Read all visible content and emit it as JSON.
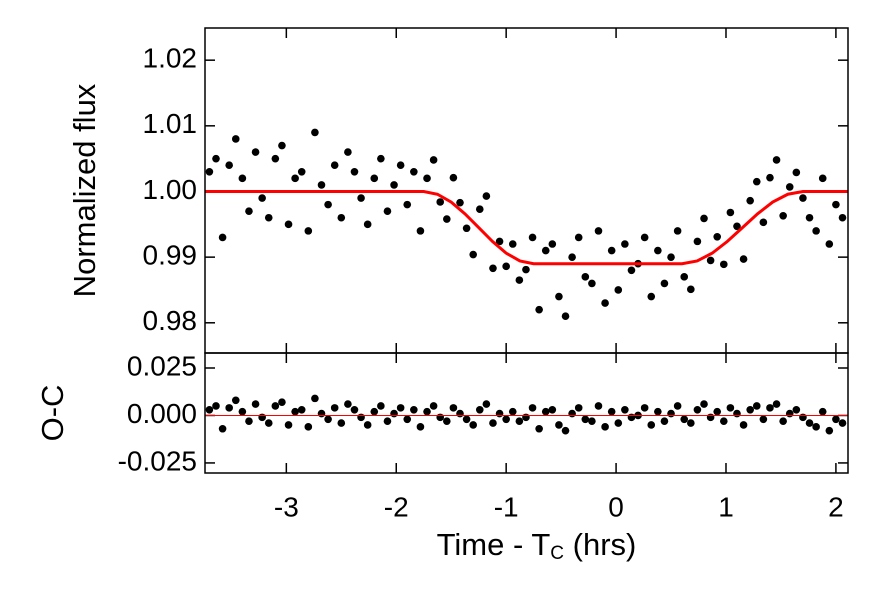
{
  "chart_data": [
    {
      "type": "scatter",
      "ylabel": "Normalized flux",
      "xlim": [
        -3.74,
        2.11
      ],
      "ylim": [
        0.9754,
        1.0249
      ],
      "xticks": [
        -3,
        -2,
        -1,
        0,
        1,
        2
      ],
      "show_xticklabels": false,
      "yticks": [
        0.98,
        0.99,
        {
          "value": 1,
          "label": "1.00"
        },
        1.01,
        1.02
      ],
      "series": [
        {
          "mode": "markers",
          "color": "#000000",
          "x": [
            -3.7,
            -3.64,
            -3.58,
            -3.52,
            -3.46,
            -3.4,
            -3.34,
            -3.28,
            -3.22,
            -3.16,
            -3.1,
            -3.04,
            -2.98,
            -2.92,
            -2.86,
            -2.8,
            -2.74,
            -2.68,
            -2.62,
            -2.56,
            -2.5,
            -2.44,
            -2.38,
            -2.32,
            -2.26,
            -2.2,
            -2.14,
            -2.08,
            -2.02,
            -1.96,
            -1.9,
            -1.84,
            -1.78,
            -1.72,
            -1.66,
            -1.6,
            -1.54,
            -1.48,
            -1.42,
            -1.36,
            -1.3,
            -1.24,
            -1.18,
            -1.12,
            -1.06,
            -1.0,
            -0.94,
            -0.88,
            -0.82,
            -0.76,
            -0.7,
            -0.64,
            -0.58,
            -0.52,
            -0.46,
            -0.4,
            -0.34,
            -0.28,
            -0.22,
            -0.16,
            -0.1,
            -0.04,
            0.02,
            0.08,
            0.14,
            0.2,
            0.26,
            0.32,
            0.38,
            0.44,
            0.5,
            0.56,
            0.62,
            0.68,
            0.74,
            0.8,
            0.86,
            0.92,
            0.98,
            1.04,
            1.1,
            1.16,
            1.22,
            1.28,
            1.34,
            1.4,
            1.46,
            1.52,
            1.58,
            1.64,
            1.7,
            1.76,
            1.82,
            1.88,
            1.94,
            2.0,
            2.06
          ],
          "values": [
            1.003,
            1.005,
            0.993,
            1.004,
            1.008,
            1.002,
            0.997,
            1.006,
            0.999,
            0.996,
            1.005,
            1.007,
            0.995,
            1.002,
            1.003,
            0.994,
            1.009,
            1.001,
            0.998,
            1.004,
            0.996,
            1.006,
            1.003,
            0.999,
            0.995,
            1.002,
            1.005,
            0.997,
            1.001,
            1.004,
            0.998,
            1.003,
            0.994,
            1.002,
            1.0048,
            0.9984,
            0.9958,
            1.0021,
            0.9983,
            0.9944,
            0.9904,
            0.9973,
            0.9993,
            0.9883,
            0.9924,
            0.9886,
            0.992,
            0.9865,
            0.9881,
            0.993,
            0.982,
            0.991,
            0.992,
            0.984,
            0.981,
            0.99,
            0.993,
            0.987,
            0.986,
            0.994,
            0.983,
            0.991,
            0.985,
            0.992,
            0.988,
            0.989,
            0.993,
            0.984,
            0.991,
            0.986,
            0.99,
            0.994,
            0.987,
            0.9851,
            0.9924,
            0.9959,
            0.9895,
            0.9931,
            0.9889,
            0.9968,
            0.9947,
            0.9897,
            0.9986,
            1.0015,
            0.9953,
            1.0021,
            1.0048,
            0.9963,
            1.0007,
            1.0029,
            0.999,
            0.996,
            0.994,
            1.002,
            0.992,
            0.998,
            0.996
          ]
        },
        {
          "mode": "lines",
          "color": "#ff0000",
          "x": [
            -3.74,
            -1.75,
            -1.625,
            -1.5,
            -1.375,
            -1.25,
            -1.125,
            -1.0,
            -0.875,
            -0.75,
            0.6,
            0.7375,
            0.875,
            1.0125,
            1.15,
            1.2875,
            1.425,
            1.5625,
            1.7,
            2.11
          ],
          "values": [
            1.0,
            1.0,
            0.99958,
            0.99839,
            0.9966,
            0.9945,
            0.9924,
            0.99061,
            0.98942,
            0.989,
            0.989,
            0.98942,
            0.99061,
            0.9924,
            0.9945,
            0.9966,
            0.99839,
            0.99958,
            1.0,
            1.0
          ]
        }
      ]
    },
    {
      "type": "scatter",
      "ylabel": "O-C",
      "xlabel": [
        "Time - T",
        "C",
        " (hrs)"
      ],
      "xlim": [
        -3.74,
        2.11
      ],
      "ylim": [
        -0.0303,
        0.0329
      ],
      "xticks": [
        -3,
        -2,
        -1,
        0,
        1,
        2
      ],
      "show_xticklabels": true,
      "yticks": [
        -0.025,
        {
          "value": 0,
          "label": "0.000"
        },
        0.025
      ],
      "series": [
        {
          "mode": "markers",
          "color": "#000000",
          "x": [
            -3.7,
            -3.64,
            -3.58,
            -3.52,
            -3.46,
            -3.4,
            -3.34,
            -3.28,
            -3.22,
            -3.16,
            -3.1,
            -3.04,
            -2.98,
            -2.92,
            -2.86,
            -2.8,
            -2.74,
            -2.68,
            -2.62,
            -2.56,
            -2.5,
            -2.44,
            -2.38,
            -2.32,
            -2.26,
            -2.2,
            -2.14,
            -2.08,
            -2.02,
            -1.96,
            -1.9,
            -1.84,
            -1.78,
            -1.72,
            -1.66,
            -1.6,
            -1.54,
            -1.48,
            -1.42,
            -1.36,
            -1.3,
            -1.24,
            -1.18,
            -1.12,
            -1.06,
            -1.0,
            -0.94,
            -0.88,
            -0.82,
            -0.76,
            -0.7,
            -0.64,
            -0.58,
            -0.52,
            -0.46,
            -0.4,
            -0.34,
            -0.28,
            -0.22,
            -0.16,
            -0.1,
            -0.04,
            0.02,
            0.08,
            0.14,
            0.2,
            0.26,
            0.32,
            0.38,
            0.44,
            0.5,
            0.56,
            0.62,
            0.68,
            0.74,
            0.8,
            0.86,
            0.92,
            0.98,
            1.04,
            1.1,
            1.16,
            1.22,
            1.28,
            1.34,
            1.4,
            1.46,
            1.52,
            1.58,
            1.64,
            1.7,
            1.76,
            1.82,
            1.88,
            1.94,
            2.0,
            2.06
          ],
          "values": [
            0.003,
            0.005,
            -0.007,
            0.004,
            0.008,
            0.002,
            -0.003,
            0.006,
            -0.001,
            -0.004,
            0.005,
            0.007,
            -0.005,
            0.002,
            0.003,
            -0.006,
            0.009,
            0.001,
            -0.002,
            0.004,
            -0.004,
            0.006,
            0.003,
            -0.001,
            -0.005,
            0.002,
            0.005,
            -0.003,
            0.001,
            0.004,
            -0.002,
            0.003,
            -0.006,
            0.002,
            0.005,
            -0.001,
            -0.003,
            0.004,
            0.001,
            -0.002,
            -0.005,
            0.003,
            0.006,
            -0.004,
            0.001,
            -0.002,
            0.002,
            -0.003,
            -0.001,
            0.004,
            -0.007,
            0.002,
            0.003,
            -0.005,
            -0.008,
            0.001,
            0.004,
            -0.002,
            -0.003,
            0.005,
            -0.006,
            0.002,
            -0.004,
            0.003,
            -0.001,
            0,
            0.004,
            -0.005,
            0.002,
            -0.003,
            0.001,
            0.005,
            -0.002,
            -0.004,
            0.003,
            0.006,
            -0.001,
            0.002,
            -0.003,
            0.004,
            0.001,
            -0.005,
            0.003,
            0.005,
            -0.002,
            0.004,
            0.006,
            -0.003,
            0.001,
            0.003,
            -0.001,
            -0.004,
            -0.006,
            0.002,
            -0.008,
            -0.002,
            -0.004
          ]
        },
        {
          "mode": "lines",
          "color": "#ff0000",
          "x": [
            -3.74,
            2.11
          ],
          "values": [
            0,
            0
          ]
        }
      ]
    }
  ]
}
